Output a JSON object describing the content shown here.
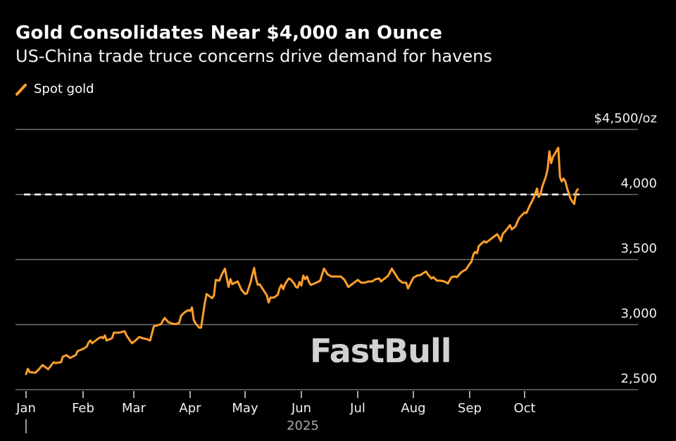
{
  "header": {
    "title": "Gold Consolidates Near $4,000 an Ounce",
    "subtitle": "US-China trade truce concerns drive demand for havens"
  },
  "legend": {
    "label": "Spot gold",
    "color": "#FF9E2C",
    "icon": "diagonal-line-icon"
  },
  "watermark": "FastBull",
  "chart_data": {
    "type": "line",
    "title": "Gold Consolidates Near $4,000 an Ounce",
    "subtitle": "US-China trade truce concerns drive demand for havens",
    "xlabel": "2025",
    "ylabel": "",
    "ylim": [
      2500,
      4500
    ],
    "y_ticks": [
      2500,
      3000,
      3500,
      4000,
      4500
    ],
    "y_tick_labels": [
      "2,500",
      "3,000",
      "3,500",
      "4,000",
      "$4,500/oz"
    ],
    "x_tick_labels": [
      "Jan",
      "Feb",
      "Mar",
      "Apr",
      "May",
      "Jun",
      "Jul",
      "Aug",
      "Sep",
      "Oct"
    ],
    "year_label": "2025",
    "grid": true,
    "legend_position": "top-left",
    "reference_line": {
      "value": 4000,
      "style": "dashed",
      "color": "#FFFFFF"
    },
    "series": [
      {
        "name": "Spot gold",
        "color": "#FF9E2C",
        "points": [
          [
            "2025-01-01",
            2620
          ],
          [
            "2025-01-02",
            2660
          ],
          [
            "2025-01-03",
            2635
          ],
          [
            "2025-01-06",
            2630
          ],
          [
            "2025-01-08",
            2657
          ],
          [
            "2025-01-10",
            2689
          ],
          [
            "2025-01-12",
            2668
          ],
          [
            "2025-01-13",
            2657
          ],
          [
            "2025-01-16",
            2711
          ],
          [
            "2025-01-17",
            2705
          ],
          [
            "2025-01-20",
            2711
          ],
          [
            "2025-01-21",
            2754
          ],
          [
            "2025-01-23",
            2765
          ],
          [
            "2025-01-25",
            2743
          ],
          [
            "2025-01-27",
            2759
          ],
          [
            "2025-01-28",
            2765
          ],
          [
            "2025-01-29",
            2797
          ],
          [
            "2025-02-01",
            2813
          ],
          [
            "2025-02-03",
            2830
          ],
          [
            "2025-02-04",
            2862
          ],
          [
            "2025-02-05",
            2878
          ],
          [
            "2025-02-06",
            2857
          ],
          [
            "2025-02-09",
            2889
          ],
          [
            "2025-02-11",
            2905
          ],
          [
            "2025-02-12",
            2895
          ],
          [
            "2025-02-13",
            2916
          ],
          [
            "2025-02-14",
            2878
          ],
          [
            "2025-02-16",
            2889
          ],
          [
            "2025-02-17",
            2895
          ],
          [
            "2025-02-18",
            2938
          ],
          [
            "2025-02-21",
            2938
          ],
          [
            "2025-02-24",
            2949
          ],
          [
            "2025-02-25",
            2916
          ],
          [
            "2025-02-26",
            2895
          ],
          [
            "2025-02-28",
            2857
          ],
          [
            "2025-03-02",
            2878
          ],
          [
            "2025-03-04",
            2905
          ],
          [
            "2025-03-06",
            2895
          ],
          [
            "2025-03-08",
            2889
          ],
          [
            "2025-03-10",
            2878
          ],
          [
            "2025-03-11",
            2932
          ],
          [
            "2025-03-12",
            2986
          ],
          [
            "2025-03-16",
            3003
          ],
          [
            "2025-03-17",
            3030
          ],
          [
            "2025-03-18",
            3051
          ],
          [
            "2025-03-20",
            3019
          ],
          [
            "2025-03-22",
            3008
          ],
          [
            "2025-03-24",
            3003
          ],
          [
            "2025-03-26",
            3013
          ],
          [
            "2025-03-27",
            3068
          ],
          [
            "2025-03-29",
            3095
          ],
          [
            "2025-03-31",
            3111
          ],
          [
            "2025-04-01",
            3105
          ],
          [
            "2025-04-02",
            3132
          ],
          [
            "2025-04-03",
            3035
          ],
          [
            "2025-04-04",
            3008
          ],
          [
            "2025-04-06",
            2976
          ],
          [
            "2025-04-07",
            2976
          ],
          [
            "2025-04-09",
            3165
          ],
          [
            "2025-04-10",
            3235
          ],
          [
            "2025-04-13",
            3203
          ],
          [
            "2025-04-14",
            3224
          ],
          [
            "2025-04-15",
            3343
          ],
          [
            "2025-04-17",
            3338
          ],
          [
            "2025-04-18",
            3376
          ],
          [
            "2025-04-20",
            3430
          ],
          [
            "2025-04-22",
            3289
          ],
          [
            "2025-04-23",
            3349
          ],
          [
            "2025-04-24",
            3311
          ],
          [
            "2025-04-27",
            3332
          ],
          [
            "2025-04-29",
            3268
          ],
          [
            "2025-05-01",
            3235
          ],
          [
            "2025-05-02",
            3240
          ],
          [
            "2025-05-04",
            3322
          ],
          [
            "2025-05-05",
            3381
          ],
          [
            "2025-05-06",
            3435
          ],
          [
            "2025-05-07",
            3354
          ],
          [
            "2025-05-08",
            3305
          ],
          [
            "2025-05-09",
            3311
          ],
          [
            "2025-05-11",
            3268
          ],
          [
            "2025-05-13",
            3224
          ],
          [
            "2025-05-14",
            3170
          ],
          [
            "2025-05-15",
            3208
          ],
          [
            "2025-05-17",
            3208
          ],
          [
            "2025-05-19",
            3230
          ],
          [
            "2025-05-20",
            3278
          ],
          [
            "2025-05-21",
            3305
          ],
          [
            "2025-05-22",
            3273
          ],
          [
            "2025-05-23",
            3311
          ],
          [
            "2025-05-25",
            3354
          ],
          [
            "2025-05-26",
            3349
          ],
          [
            "2025-05-28",
            3316
          ],
          [
            "2025-05-29",
            3289
          ],
          [
            "2025-05-30",
            3284
          ],
          [
            "2025-05-31",
            3327
          ],
          [
            "2025-06-01",
            3300
          ],
          [
            "2025-06-02",
            3376
          ],
          [
            "2025-06-03",
            3349
          ],
          [
            "2025-06-04",
            3370
          ],
          [
            "2025-06-05",
            3327
          ],
          [
            "2025-06-06",
            3305
          ],
          [
            "2025-06-09",
            3322
          ],
          [
            "2025-06-11",
            3338
          ],
          [
            "2025-06-13",
            3430
          ],
          [
            "2025-06-15",
            3386
          ],
          [
            "2025-06-17",
            3370
          ],
          [
            "2025-06-20",
            3370
          ],
          [
            "2025-06-22",
            3370
          ],
          [
            "2025-06-24",
            3343
          ],
          [
            "2025-06-26",
            3289
          ],
          [
            "2025-06-28",
            3311
          ],
          [
            "2025-06-30",
            3332
          ],
          [
            "2025-07-01",
            3343
          ],
          [
            "2025-07-03",
            3322
          ],
          [
            "2025-07-05",
            3322
          ],
          [
            "2025-07-07",
            3332
          ],
          [
            "2025-07-09",
            3332
          ],
          [
            "2025-07-11",
            3349
          ],
          [
            "2025-07-13",
            3354
          ],
          [
            "2025-07-14",
            3332
          ],
          [
            "2025-07-16",
            3354
          ],
          [
            "2025-07-18",
            3376
          ],
          [
            "2025-07-20",
            3430
          ],
          [
            "2025-07-22",
            3386
          ],
          [
            "2025-07-24",
            3343
          ],
          [
            "2025-07-26",
            3322
          ],
          [
            "2025-07-28",
            3322
          ],
          [
            "2025-07-29",
            3278
          ],
          [
            "2025-08-01",
            3360
          ],
          [
            "2025-08-03",
            3376
          ],
          [
            "2025-08-05",
            3381
          ],
          [
            "2025-08-06",
            3392
          ],
          [
            "2025-08-08",
            3408
          ],
          [
            "2025-08-09",
            3386
          ],
          [
            "2025-08-11",
            3354
          ],
          [
            "2025-08-12",
            3365
          ],
          [
            "2025-08-14",
            3338
          ],
          [
            "2025-08-16",
            3338
          ],
          [
            "2025-08-18",
            3332
          ],
          [
            "2025-08-20",
            3316
          ],
          [
            "2025-08-22",
            3365
          ],
          [
            "2025-08-24",
            3370
          ],
          [
            "2025-08-25",
            3365
          ],
          [
            "2025-08-27",
            3397
          ],
          [
            "2025-08-28",
            3408
          ],
          [
            "2025-08-30",
            3424
          ],
          [
            "2025-09-01",
            3467
          ],
          [
            "2025-09-02",
            3484
          ],
          [
            "2025-09-03",
            3538
          ],
          [
            "2025-09-04",
            3559
          ],
          [
            "2025-09-05",
            3548
          ],
          [
            "2025-09-06",
            3603
          ],
          [
            "2025-09-08",
            3630
          ],
          [
            "2025-09-09",
            3641
          ],
          [
            "2025-09-10",
            3630
          ],
          [
            "2025-09-11",
            3641
          ],
          [
            "2025-09-13",
            3662
          ],
          [
            "2025-09-16",
            3695
          ],
          [
            "2025-09-17",
            3673
          ],
          [
            "2025-09-18",
            3641
          ],
          [
            "2025-09-19",
            3695
          ],
          [
            "2025-09-21",
            3727
          ],
          [
            "2025-09-23",
            3765
          ],
          [
            "2025-09-24",
            3732
          ],
          [
            "2025-09-26",
            3754
          ],
          [
            "2025-09-28",
            3819
          ],
          [
            "2025-10-01",
            3862
          ],
          [
            "2025-10-02",
            3857
          ],
          [
            "2025-10-04",
            3916
          ],
          [
            "2025-10-06",
            3970
          ],
          [
            "2025-10-08",
            4046
          ],
          [
            "2025-10-09",
            3981
          ],
          [
            "2025-10-10",
            4003
          ],
          [
            "2025-10-11",
            4062
          ],
          [
            "2025-10-13",
            4138
          ],
          [
            "2025-10-14",
            4197
          ],
          [
            "2025-10-15",
            4332
          ],
          [
            "2025-10-16",
            4241
          ],
          [
            "2025-10-17",
            4289
          ],
          [
            "2025-10-20",
            4359
          ],
          [
            "2025-10-21",
            4132
          ],
          [
            "2025-10-22",
            4100
          ],
          [
            "2025-10-23",
            4122
          ],
          [
            "2025-10-24",
            4100
          ],
          [
            "2025-10-25",
            4046
          ],
          [
            "2025-10-27",
            3965
          ],
          [
            "2025-10-29",
            3927
          ],
          [
            "2025-10-30",
            4019
          ],
          [
            "2025-10-31",
            4041
          ]
        ]
      }
    ]
  }
}
